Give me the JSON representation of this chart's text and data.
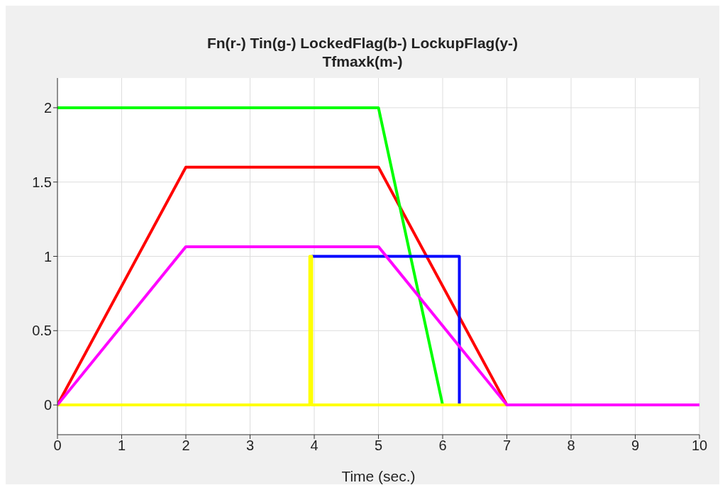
{
  "chart_data": {
    "type": "line",
    "title": "Fn(r-) Tin(g-) LockedFlag(b-) LockupFlag(y-)\nTfmaxk(m-)",
    "xlabel": "Time (sec.)",
    "series": [
      {
        "color": "#ff0000",
        "x": [
          0,
          2,
          5,
          7,
          10
        ],
        "values": [
          0,
          1.6,
          1.6,
          0,
          0
        ]
      },
      {
        "color": "#00ff00",
        "x": [
          0,
          5,
          6,
          10
        ],
        "values": [
          2,
          2,
          0,
          0
        ]
      },
      {
        "color": "#0000ff",
        "x": [
          3.96,
          6.26,
          6.26
        ],
        "values": [
          1,
          1,
          0
        ]
      },
      {
        "color": "#ffff00",
        "x": [
          0,
          3.93,
          3.93,
          3.96,
          3.96,
          10
        ],
        "values": [
          0,
          0,
          1,
          1,
          0,
          0
        ]
      },
      {
        "color": "#ff00ff",
        "x": [
          0,
          2,
          5,
          7,
          10
        ],
        "values": [
          0,
          1.065,
          1.065,
          0,
          0
        ]
      }
    ],
    "xlim": [
      0,
      10
    ],
    "xticks": [
      0,
      1,
      2,
      3,
      4,
      5,
      6,
      7,
      8,
      9,
      10
    ],
    "ylim": [
      -0.2,
      2.2
    ],
    "yticks": [
      0,
      0.5,
      1,
      1.5,
      2
    ],
    "grid": true,
    "marker": "none",
    "line_style": "solid"
  }
}
